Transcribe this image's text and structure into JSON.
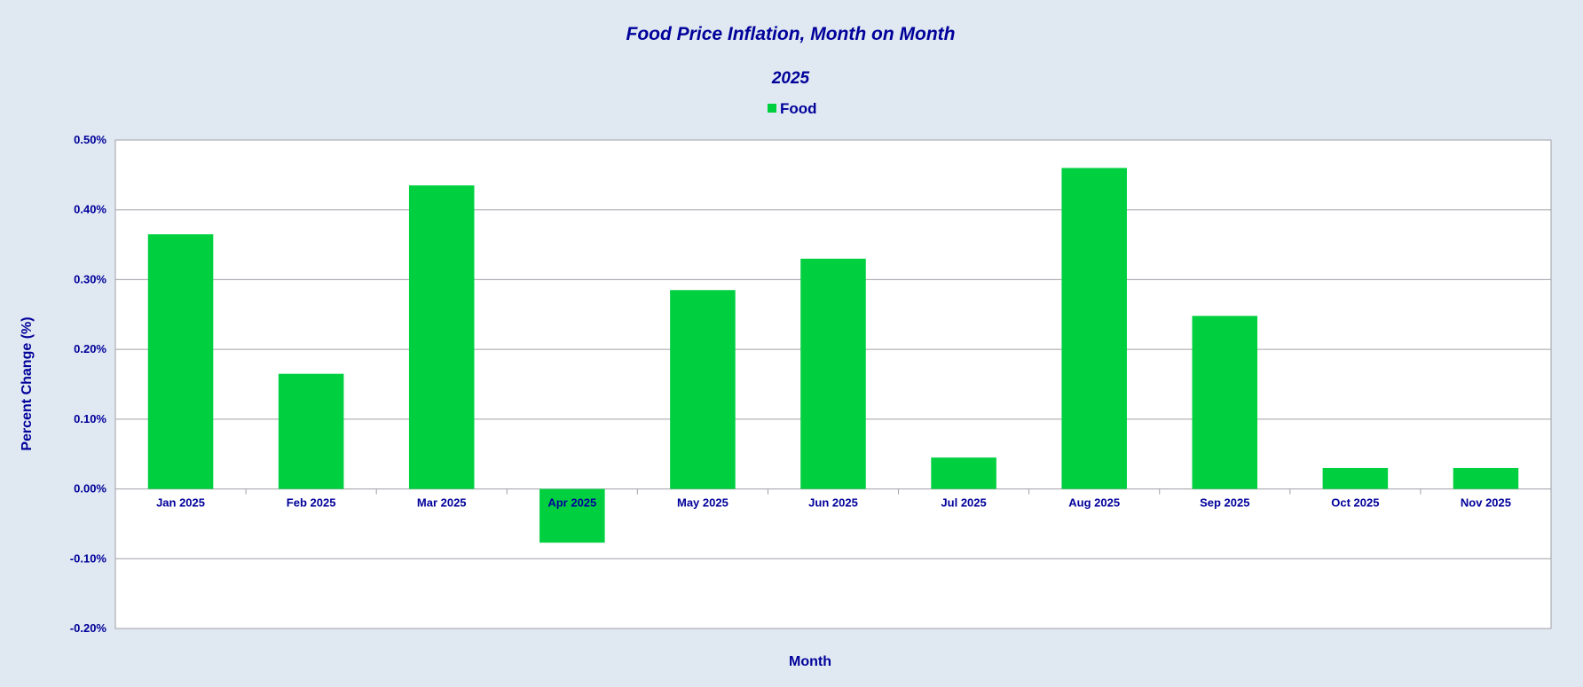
{
  "chart_data": {
    "type": "bar",
    "title": "Food Price Inflation, Month on Month",
    "subtitle": "2025",
    "xlabel": "Month",
    "ylabel": "Percent Change (%)",
    "categories": [
      "Jan 2025",
      "Feb 2025",
      "Mar 2025",
      "Apr 2025",
      "May 2025",
      "Jun 2025",
      "Jul 2025",
      "Aug 2025",
      "Sep 2025",
      "Oct 2025",
      "Nov 2025"
    ],
    "series": [
      {
        "name": "Food",
        "color": "#00d040",
        "values": [
          0.365,
          0.165,
          0.435,
          -0.077,
          0.285,
          0.33,
          0.045,
          0.46,
          0.248,
          0.03,
          0.03
        ]
      }
    ],
    "ylim": [
      -0.2,
      0.5
    ],
    "yticks": [
      0.5,
      0.4,
      0.3,
      0.2,
      0.1,
      0.0,
      -0.1,
      -0.2
    ],
    "ytick_labels": [
      "0.50%",
      "0.40%",
      "0.30%",
      "0.20%",
      "0.10%",
      "0.00%",
      "-0.10%",
      "-0.20%"
    ],
    "grid": true,
    "legend_position": "top-center",
    "colors": {
      "background": "#e0e9f1",
      "plot_area": "#ffffff",
      "text": "#00009a",
      "grid": "#a0a0a8"
    }
  }
}
